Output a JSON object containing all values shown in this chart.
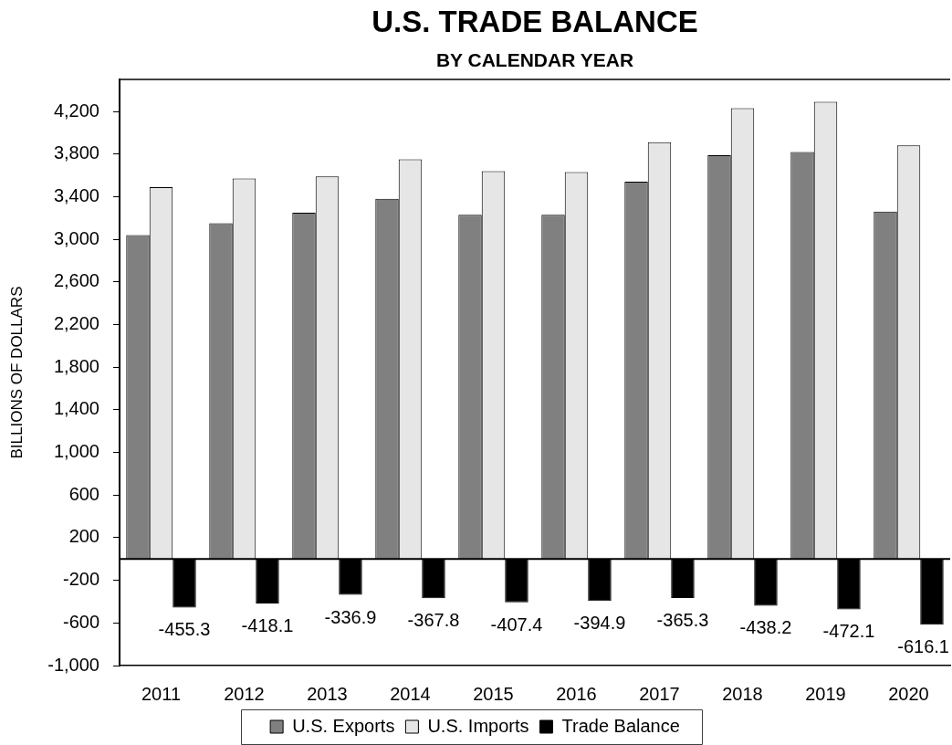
{
  "chart_data": {
    "type": "bar",
    "title": "U.S. TRADE BALANCE",
    "subtitle": "BY CALENDAR YEAR",
    "ylabel": "BILLIONS OF DOLLARS",
    "categories": [
      "2011",
      "2012",
      "2013",
      "2014",
      "2015",
      "2016",
      "2017",
      "2018",
      "2019",
      "2020"
    ],
    "series": [
      {
        "name": "U.S. Exports",
        "color": "#808080",
        "values": [
          3040,
          3150,
          3250,
          3380,
          3230,
          3230,
          3540,
          3790,
          3820,
          3260
        ]
      },
      {
        "name": "U.S. Imports",
        "color": "#e6e6e6",
        "values": [
          3490,
          3570,
          3590,
          3750,
          3640,
          3630,
          3910,
          4230,
          4290,
          3880
        ]
      },
      {
        "name": "Trade Balance",
        "color": "#000000",
        "values": [
          -455.3,
          -418.1,
          -336.9,
          -367.8,
          -407.4,
          -394.9,
          -365.3,
          -438.2,
          -472.1,
          -616.1
        ],
        "value_labels": [
          "-455.3",
          "-418.1",
          "-336.9",
          "-367.8",
          "-407.4",
          "-394.9",
          "-365.3",
          "-438.2",
          "-472.1",
          "-616.1"
        ]
      }
    ],
    "ylim": [
      -1000,
      4500
    ],
    "yticks": [
      {
        "value": -1000,
        "label": "-1,000"
      },
      -600,
      -200,
      200,
      600,
      {
        "value": 1000,
        "label": "1,000"
      },
      {
        "value": 1400,
        "label": "1,400"
      },
      {
        "value": 1800,
        "label": "1,800"
      },
      {
        "value": 2200,
        "label": "2,200"
      },
      {
        "value": 2600,
        "label": "2,600"
      },
      {
        "value": 3000,
        "label": "3,000"
      },
      {
        "value": 3400,
        "label": "3,400"
      },
      {
        "value": 3800,
        "label": "3,800"
      },
      {
        "value": 4200,
        "label": "4,200"
      }
    ],
    "legend": "bottom"
  }
}
